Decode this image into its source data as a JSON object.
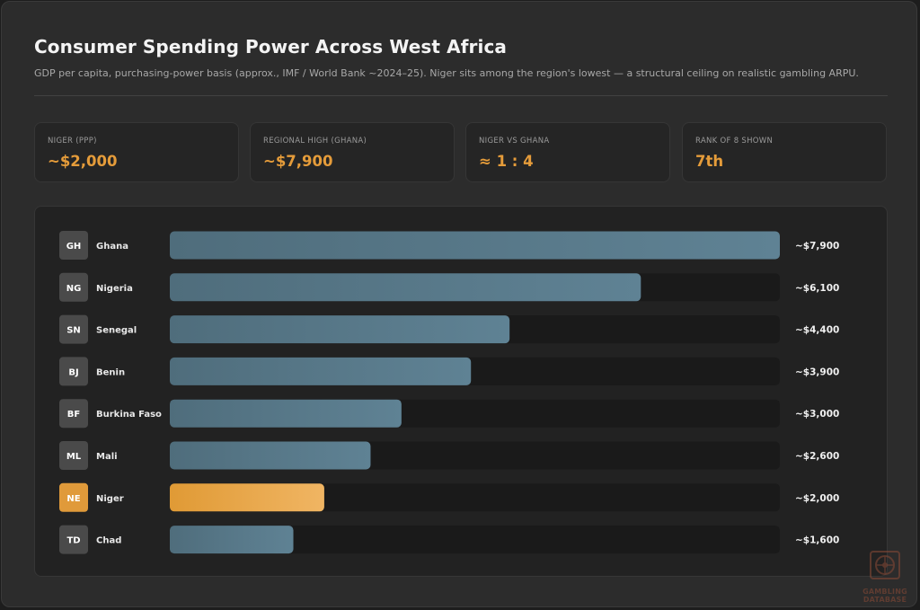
{
  "header": {
    "title": "Consumer Spending Power Across West Africa",
    "subtitle": "GDP per capita, purchasing-power basis (approx., IMF / World Bank ~2024–25). Niger sits among the region's lowest — a structural ceiling on realistic gambling ARPU."
  },
  "kpis": [
    {
      "label": "NIGER (PPP)",
      "value": "~$2,000"
    },
    {
      "label": "REGIONAL HIGH (GHANA)",
      "value": "~$7,900"
    },
    {
      "label": "NIGER VS GHANA",
      "value": "≈ 1 : 4"
    },
    {
      "label": "RANK OF 8 SHOWN",
      "value": "7th"
    }
  ],
  "chart_data": {
    "type": "bar",
    "orientation": "horizontal",
    "xlim": [
      0,
      7900
    ],
    "categories": [
      "Ghana",
      "Nigeria",
      "Senegal",
      "Benin",
      "Burkina Faso",
      "Mali",
      "Niger",
      "Chad"
    ],
    "codes": [
      "GH",
      "NG",
      "SN",
      "BJ",
      "BF",
      "ML",
      "NE",
      "TD"
    ],
    "values": [
      7900,
      6100,
      4400,
      3900,
      3000,
      2600,
      2000,
      1600
    ],
    "value_labels": [
      "~$7,900",
      "~$6,100",
      "~$4,400",
      "~$3,900",
      "~$3,000",
      "~$2,600",
      "~$2,000",
      "~$1,600"
    ],
    "highlight": "Niger",
    "colors": {
      "bar": "#5a7b8c",
      "highlight": "#e9a545",
      "track": "#1a1a1a",
      "badge": "#4a4a4a",
      "badge_highlight": "#e09a3a"
    },
    "grid": false,
    "legend": "none"
  },
  "logo": {
    "icon": "roulette-wheel-icon",
    "text": "GAMBLING DATABASE"
  }
}
